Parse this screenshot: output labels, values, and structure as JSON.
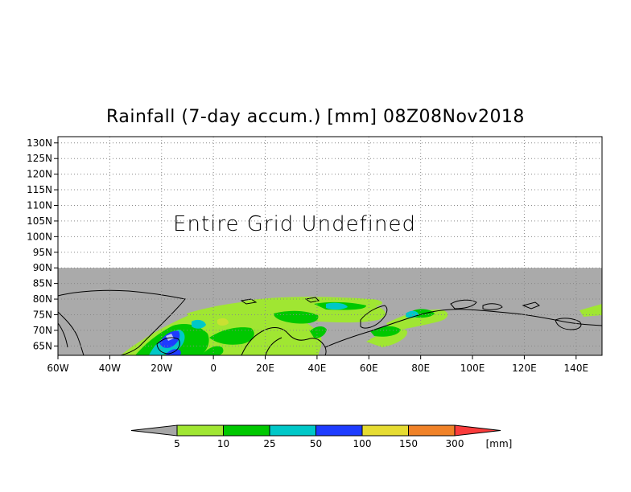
{
  "title": "Rainfall (7-day accum.) [mm] 08Z08Nov2018",
  "undefined_message": "Entire Grid Undefined",
  "map": {
    "lon_range": [
      -60,
      150
    ],
    "lat_range": [
      62,
      132
    ],
    "data_lat_max": 90,
    "lon_ticks": [
      "60W",
      "40W",
      "20W",
      "0",
      "20E",
      "40E",
      "60E",
      "80E",
      "100E",
      "120E",
      "140E"
    ],
    "lat_ticks": [
      "130N",
      "125N",
      "120N",
      "115N",
      "110N",
      "105N",
      "100N",
      "95N",
      "90N",
      "85N",
      "80N",
      "75N",
      "70N",
      "65N"
    ],
    "background_color": "#aaaaaa"
  },
  "legend": {
    "unit": "[mm]",
    "levels": [
      "5",
      "10",
      "25",
      "50",
      "100",
      "150",
      "300"
    ],
    "colors": [
      "#a6a6a6",
      "#a0e632",
      "#00c800",
      "#00c8c8",
      "#1e3cff",
      "#e6dc32",
      "#f08228",
      "#fa3c3c"
    ]
  }
}
